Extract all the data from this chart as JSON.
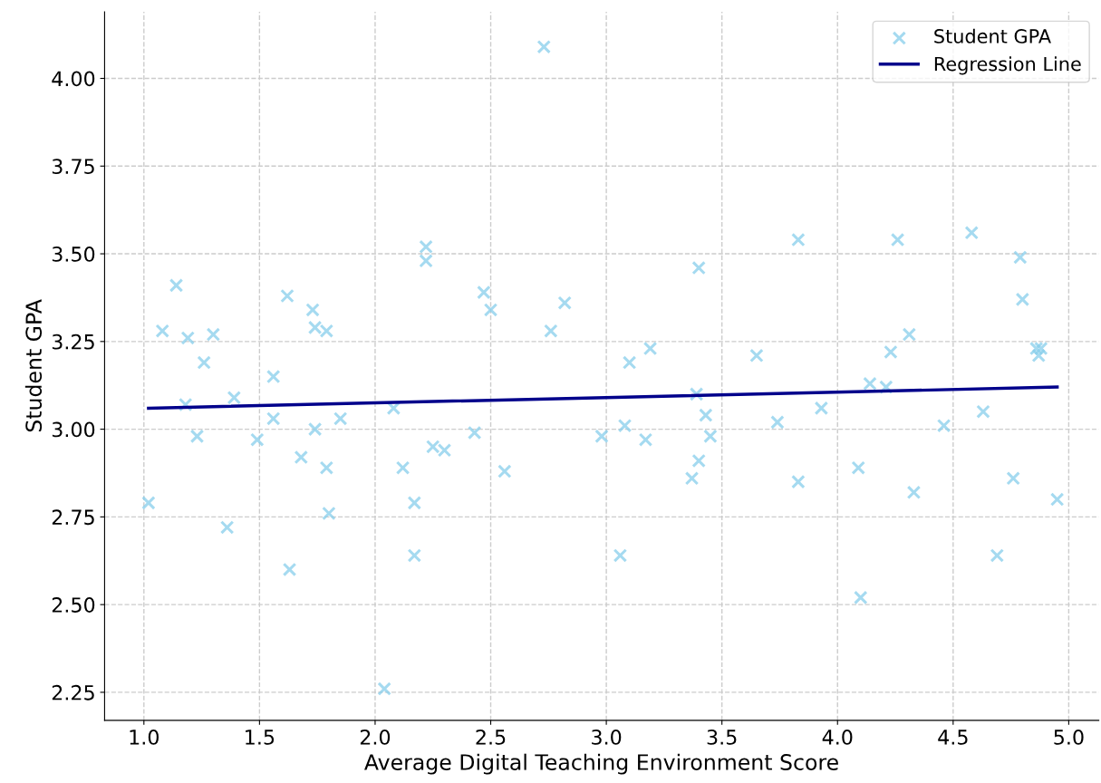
{
  "chart_data": {
    "type": "scatter",
    "xlabel": "Average Digital Teaching Environment Score",
    "ylabel": "Student GPA",
    "xlim": [
      0.83,
      5.13
    ],
    "ylim": [
      2.17,
      4.19
    ],
    "xticks": [
      {
        "value": 1,
        "label": "1.0"
      },
      {
        "value": 1.5,
        "label": "1.5"
      },
      {
        "value": 2,
        "label": "2.0"
      },
      {
        "value": 2.5,
        "label": "2.5"
      },
      {
        "value": 3,
        "label": "3.0"
      },
      {
        "value": 3.5,
        "label": "3.5"
      },
      {
        "value": 4,
        "label": "4.0"
      },
      {
        "value": 4.5,
        "label": "4.5"
      },
      {
        "value": 5,
        "label": "5.0"
      }
    ],
    "yticks": [
      {
        "value": 2.25,
        "label": "2.25"
      },
      {
        "value": 2.5,
        "label": "2.50"
      },
      {
        "value": 2.75,
        "label": "2.75"
      },
      {
        "value": 3,
        "label": "3.00"
      },
      {
        "value": 3.25,
        "label": "3.25"
      },
      {
        "value": 3.5,
        "label": "3.50"
      },
      {
        "value": 3.75,
        "label": "3.75"
      },
      {
        "value": 4,
        "label": "4.00"
      }
    ],
    "grid": true,
    "legend": "top right",
    "series": [
      {
        "name": "Student GPA",
        "color": "#87ceeb",
        "marker": "cross",
        "x": [
          1.02,
          1.08,
          1.14,
          1.19,
          1.18,
          1.23,
          1.26,
          1.3,
          1.36,
          1.39,
          1.49,
          1.56,
          1.56,
          1.62,
          1.63,
          1.68,
          1.73,
          1.74,
          1.74,
          1.79,
          1.79,
          1.8,
          1.85,
          2.04,
          2.08,
          2.12,
          2.17,
          2.17,
          2.22,
          2.22,
          2.25,
          2.3,
          2.43,
          2.47,
          2.5,
          2.56,
          2.73,
          2.76,
          2.82,
          2.98,
          3.06,
          3.08,
          3.1,
          3.17,
          3.19,
          3.37,
          3.39,
          3.4,
          3.4,
          3.43,
          3.45,
          3.65,
          3.74,
          3.83,
          3.83,
          3.93,
          4.09,
          4.1,
          4.14,
          4.21,
          4.23,
          4.26,
          4.31,
          4.33,
          4.46,
          4.63,
          4.58,
          4.69,
          4.76,
          4.79,
          4.8,
          4.86,
          4.87,
          4.88,
          4.95
        ],
        "values": [
          2.79,
          3.28,
          3.41,
          3.26,
          3.07,
          2.98,
          3.19,
          3.27,
          2.72,
          3.09,
          2.97,
          3.03,
          3.15,
          3.38,
          2.6,
          2.92,
          3.34,
          3.29,
          3.0,
          2.89,
          3.28,
          2.76,
          3.03,
          2.26,
          3.06,
          2.89,
          2.79,
          2.64,
          3.52,
          3.48,
          2.95,
          2.94,
          2.99,
          3.39,
          3.34,
          2.88,
          4.09,
          3.28,
          3.36,
          2.98,
          2.64,
          3.01,
          3.19,
          2.97,
          3.23,
          2.86,
          3.1,
          2.91,
          3.46,
          3.04,
          2.98,
          3.21,
          3.02,
          3.54,
          2.85,
          3.06,
          2.89,
          2.52,
          3.13,
          3.12,
          3.22,
          3.54,
          3.27,
          2.82,
          3.01,
          3.05,
          3.56,
          2.64,
          2.86,
          3.49,
          3.37,
          3.23,
          3.21,
          3.23,
          2.8
        ]
      },
      {
        "name": "Regression Line",
        "type": "line",
        "color": "#00008b",
        "line_style": "solid",
        "x": [
          1.02,
          4.95
        ],
        "values": [
          3.06,
          3.12
        ]
      }
    ]
  }
}
